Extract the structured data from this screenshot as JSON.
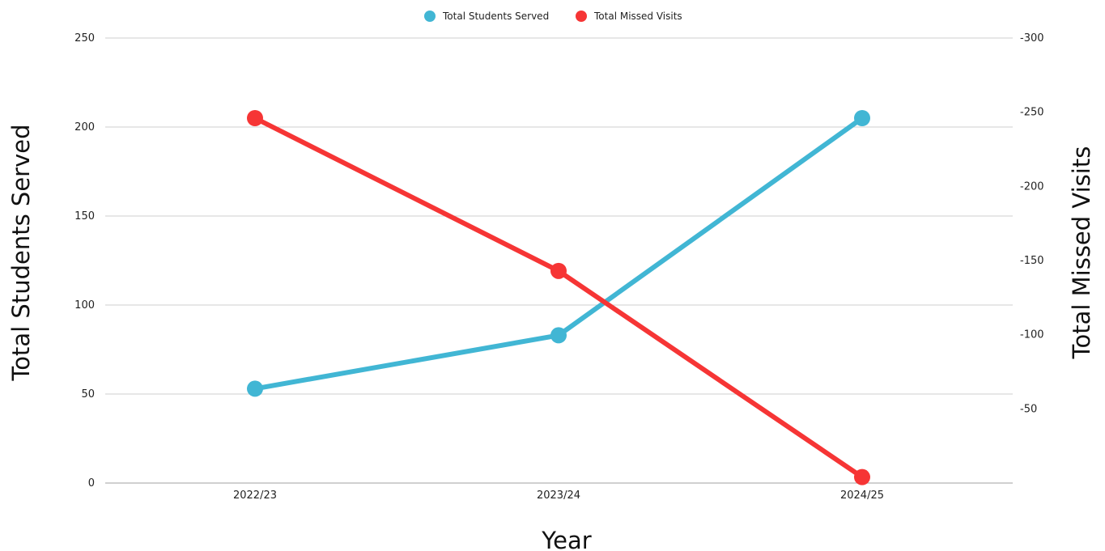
{
  "chart_data": {
    "type": "line",
    "categories": [
      "2022/23",
      "2023/24",
      "2024/25"
    ],
    "xlabel": "Year",
    "y_left": {
      "label": "Total Students Served",
      "lim": [
        0,
        250
      ],
      "ticks": [
        0,
        50,
        100,
        150,
        200,
        250
      ],
      "tick_labels": [
        "0",
        "50",
        "100",
        "150",
        "200",
        "250"
      ]
    },
    "y_right": {
      "label": "Total Missed Visits",
      "lim": [
        0,
        -300
      ],
      "ticks": [
        -50,
        -100,
        -150,
        -200,
        -250,
        -300
      ],
      "tick_labels": [
        "-50",
        "-100",
        "-150",
        "-200",
        "-250",
        "-300"
      ]
    },
    "series": [
      {
        "name": "Total Students Served",
        "axis": "left",
        "color": "#41b6d4",
        "values": [
          53,
          83,
          205
        ]
      },
      {
        "name": "Total Missed Visits",
        "axis": "right",
        "color": "#f63535",
        "values": [
          -246,
          -143,
          -4
        ]
      }
    ],
    "grid": true,
    "legend_position": "top-center"
  }
}
